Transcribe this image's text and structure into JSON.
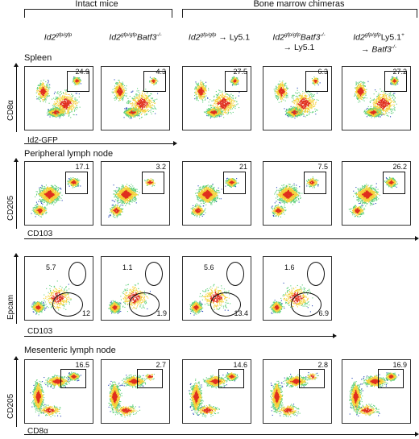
{
  "groups": {
    "intact": "Intact mice",
    "chimeras": "Bone marrow chimeras"
  },
  "columns": [
    {
      "main": "Id2",
      "sup": "gfp/gfp",
      "rest": "",
      "line2": ""
    },
    {
      "main": "Id2",
      "sup": "gfp/gfp",
      "rest": "Batf3",
      "sup2": "-/-",
      "line2": ""
    },
    {
      "main": "Id2",
      "sup": "gfp/gfp",
      "rest": " → Ly5.1",
      "line2": ""
    },
    {
      "main": "Id2",
      "sup": "gfp/gfp",
      "rest": "Batf3",
      "sup2": "-/-",
      "line2": "→ Ly5.1"
    },
    {
      "main": "Id2",
      "sup": "gfp/gfp",
      "rest": "Ly5.1",
      "sup2": "+",
      "line2": "→ Batf3",
      "line2sup": "-/-"
    }
  ],
  "sections": {
    "spleen": "Spleen",
    "pln": "Peripheral lymph node",
    "mln": "Mesenteric lymph node"
  },
  "axes": {
    "spleen_y": "CD8α",
    "spleen_x": "Id2-GFP",
    "pln_y": "CD205",
    "pln_x": "CD103",
    "epcam_y": "Epcam",
    "epcam_x": "CD103",
    "mln_y": "CD205",
    "mln_x": "CD8α"
  },
  "values": {
    "spleen": [
      "24.9",
      "4.3",
      "27.5",
      "6.3",
      "27.2"
    ],
    "pln": [
      "17.1",
      "3.2",
      "21",
      "7.5",
      "26.2"
    ],
    "epcam_top": [
      "5.7",
      "1.1",
      "5.6",
      "1.6"
    ],
    "epcam_bottom": [
      "12",
      "1.9",
      "13.4",
      "6.9"
    ],
    "mln": [
      "16.5",
      "2.7",
      "14.6",
      "2.8",
      "16.9"
    ]
  },
  "colors": {
    "dense": "#e0301e",
    "mid": "#f4d23a",
    "low": "#5fd07a",
    "sparse": "#2546b8"
  }
}
